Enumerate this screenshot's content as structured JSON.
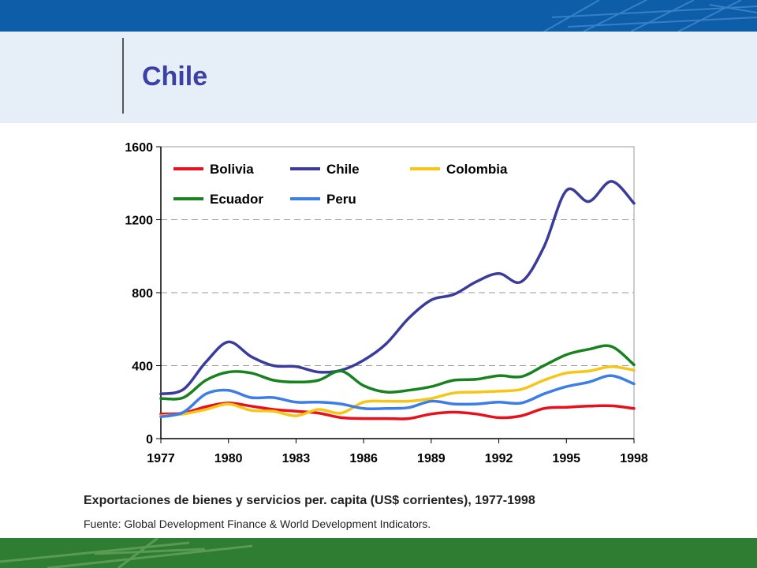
{
  "slide": {
    "title": "Chile",
    "caption": "Exportaciones de bienes y servicios per. capita (US$ corrientes), 1977-1998",
    "source": "Fuente: Global Development Finance & World Development Indicators."
  },
  "colors": {
    "top_bar": "#0d5da8",
    "title_band": "#e6eef8",
    "title_text": "#3b3fa6",
    "bottom_bar": "#2e7d32"
  },
  "chart_data": {
    "type": "line",
    "title": "",
    "xlabel": "",
    "ylabel": "",
    "xlim": [
      1977,
      1998
    ],
    "ylim": [
      0,
      1600
    ],
    "x_ticks": [
      "1977",
      "1980",
      "1983",
      "1986",
      "1989",
      "1992",
      "1995",
      "1998"
    ],
    "y_ticks": [
      "0",
      "400",
      "800",
      "1200",
      "1600"
    ],
    "grid": "horizontal dashed",
    "legend_position": "top-left inside",
    "x": [
      1977,
      1978,
      1979,
      1980,
      1981,
      1982,
      1983,
      1984,
      1985,
      1986,
      1987,
      1988,
      1989,
      1990,
      1991,
      1992,
      1993,
      1994,
      1995,
      1996,
      1997,
      1998
    ],
    "series": [
      {
        "name": "Bolivia",
        "color": "#e8101c",
        "values": [
          135,
          140,
          175,
          195,
          178,
          160,
          150,
          140,
          115,
          110,
          110,
          110,
          135,
          145,
          135,
          115,
          125,
          165,
          172,
          178,
          180,
          165
        ]
      },
      {
        "name": "Chile",
        "color": "#3a3b9a",
        "values": [
          245,
          270,
          420,
          530,
          450,
          400,
          395,
          365,
          375,
          430,
          520,
          660,
          760,
          790,
          860,
          905,
          860,
          1050,
          1360,
          1300,
          1410,
          1290
        ]
      },
      {
        "name": "Colombia",
        "color": "#f7c516",
        "values": [
          125,
          135,
          160,
          190,
          155,
          150,
          125,
          160,
          140,
          200,
          205,
          205,
          220,
          250,
          255,
          260,
          270,
          320,
          360,
          370,
          395,
          375
        ]
      },
      {
        "name": "Ecuador",
        "color": "#18821e",
        "values": [
          220,
          225,
          320,
          365,
          360,
          320,
          310,
          320,
          370,
          290,
          255,
          265,
          285,
          320,
          325,
          345,
          340,
          400,
          460,
          490,
          505,
          405
        ]
      },
      {
        "name": "Peru",
        "color": "#3d7de6",
        "values": [
          120,
          145,
          245,
          265,
          225,
          225,
          200,
          200,
          190,
          165,
          165,
          170,
          205,
          190,
          190,
          200,
          195,
          245,
          285,
          310,
          345,
          300
        ]
      }
    ]
  }
}
